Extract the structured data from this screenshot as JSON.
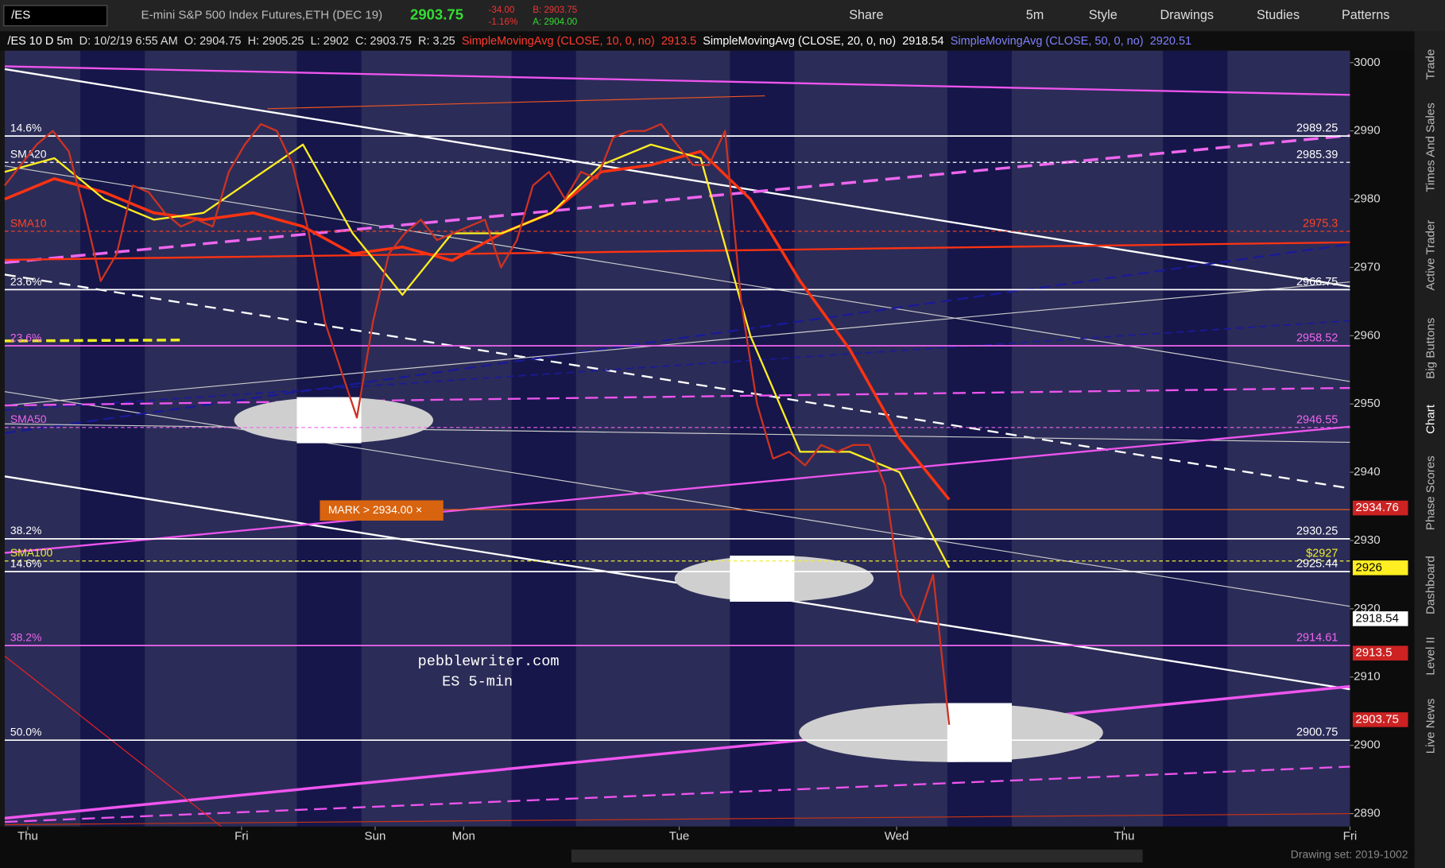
{
  "toolbar": {
    "symbol": "/ES",
    "description": "E-mini S&P 500 Index Futures,ETH (DEC 19)",
    "last": "2903.75",
    "change": "-34.00",
    "change_pct": "-1.16%",
    "bid": "B: 2903.75",
    "ask": "A: 2904.00",
    "buttons": [
      "Share",
      "5m",
      "Style",
      "Drawings",
      "Studies",
      "Patterns"
    ]
  },
  "info_bar": [
    {
      "text": "/ES 10 D 5m",
      "color": "#ffffff"
    },
    {
      "text": "D: 10/2/19 6:55 AM",
      "color": "#dddddd"
    },
    {
      "text": "O: 2904.75",
      "color": "#dddddd"
    },
    {
      "text": "H: 2905.25",
      "color": "#dddddd"
    },
    {
      "text": "L: 2902",
      "color": "#dddddd"
    },
    {
      "text": "C: 2903.75",
      "color": "#dddddd"
    },
    {
      "text": "R: 3.25",
      "color": "#dddddd"
    },
    {
      "text": "SimpleMovingAvg (CLOSE, 10, 0, no)",
      "color": "#ff3b30"
    },
    {
      "text": "2913.5",
      "color": "#ff3b30"
    },
    {
      "text": "SimpleMovingAvg (CLOSE, 20, 0, no)",
      "color": "#ffffff"
    },
    {
      "text": "2918.54",
      "color": "#ffffff"
    },
    {
      "text": "SimpleMovingAvg (CLOSE, 50, 0, no)",
      "color": "#8080ff"
    },
    {
      "text": "2920.51",
      "color": "#8080ff"
    }
  ],
  "chart": {
    "ylim": [
      2888.1,
      3001.75
    ],
    "yticks": [
      2890,
      2900,
      2910,
      2920,
      2930,
      2940,
      2950,
      2960,
      2970,
      2980,
      2990,
      3000
    ],
    "days": [
      "Thu",
      "Fri",
      "Sun",
      "Mon",
      "Tue",
      "Wed",
      "Thu",
      "Fri"
    ],
    "price": {
      "color": "#cc3322",
      "values": [
        2982,
        2985,
        2988,
        2990,
        2987,
        2978,
        2968,
        2972,
        2982,
        2981,
        2978,
        2976,
        2977,
        2976,
        2984,
        2988,
        2991,
        2990,
        2985,
        2975,
        2962,
        2955,
        2948,
        2962,
        2972,
        2975,
        2977,
        2974,
        2975,
        2976,
        2977,
        2970,
        2974,
        2982,
        2984,
        2980,
        2984,
        2983,
        2989,
        2990,
        2990,
        2991,
        2988,
        2985,
        2985,
        2990,
        2965,
        2950,
        2942,
        2943,
        2941,
        2944,
        2943,
        2944,
        2944,
        2938,
        2922,
        2918,
        2925,
        2903
      ]
    },
    "series": [
      {
        "color": "#ff3311",
        "values": [
          2980,
          2983,
          2981,
          2978,
          2977,
          2978,
          2976,
          2972,
          2973,
          2971,
          2975,
          2978,
          2984,
          2985,
          2987,
          2980,
          2968,
          2958,
          2945,
          2936
        ]
      },
      {
        "color": "#ffee22",
        "values": [
          2984,
          2986,
          2980,
          2977,
          2978,
          2983,
          2988,
          2975,
          2966,
          2975,
          2975,
          2978,
          2985,
          2988,
          2986,
          2960,
          2943,
          2943,
          2940,
          2926
        ]
      }
    ],
    "levels": [
      {
        "value": 2989.25,
        "left": "14.6%",
        "color": "#ffffff",
        "dash": false
      },
      {
        "value": 2985.39,
        "left": "SMA20",
        "color": "#ffffff",
        "dash": true
      },
      {
        "value": 2975.3,
        "left": "SMA10",
        "color": "#ff4422",
        "dash": true
      },
      {
        "value": 2966.75,
        "left": "23.6%",
        "color": "#ffffff",
        "dash": false
      },
      {
        "value": 2958.52,
        "left": "23.6%",
        "color": "#ee66ee",
        "dash": false
      },
      {
        "value": 2946.55,
        "left": "SMA50",
        "color": "#ee66ee",
        "dash": true
      },
      {
        "value": 2930.25,
        "left": "38.2%",
        "color": "#ffffff",
        "dash": false
      },
      {
        "value": 2927,
        "value_label": "$2927",
        "left": "SMA100",
        "color": "#eeee33",
        "dash": true
      },
      {
        "value": 2925.44,
        "left": "14.6%",
        "color": "#ffffff",
        "dash": false
      },
      {
        "value": 2914.61,
        "left": "38.2%",
        "color": "#ee66ee",
        "dash": false
      },
      {
        "value": 2900.75,
        "left": "50.0%",
        "color": "#ffffff",
        "dash": false
      }
    ],
    "badges": [
      {
        "value": 2934.76,
        "bg": "#cc2222",
        "fg": "#ffffff"
      },
      {
        "value": 2926,
        "bg": "#ffee22",
        "fg": "#000000"
      },
      {
        "value": 2918.54,
        "bg": "#ffffff",
        "fg": "#000000"
      },
      {
        "value": 2913.5,
        "bg": "#cc2222",
        "fg": "#ffffff"
      },
      {
        "value": 2903.75,
        "bg": "#cc2222",
        "fg": "#ffffff"
      }
    ],
    "mark": "MARK > 2934.00 ×",
    "watermark": [
      "pebblewriter.com",
      "ES 5-min"
    ]
  },
  "sidebar": [
    "Trade",
    "Times And Sales",
    "Active Trader",
    "Big Buttons",
    "Chart",
    "Phase Scores",
    "Dashboard",
    "Level II",
    "Live News"
  ],
  "footer": "Drawing set: 2019-1002"
}
